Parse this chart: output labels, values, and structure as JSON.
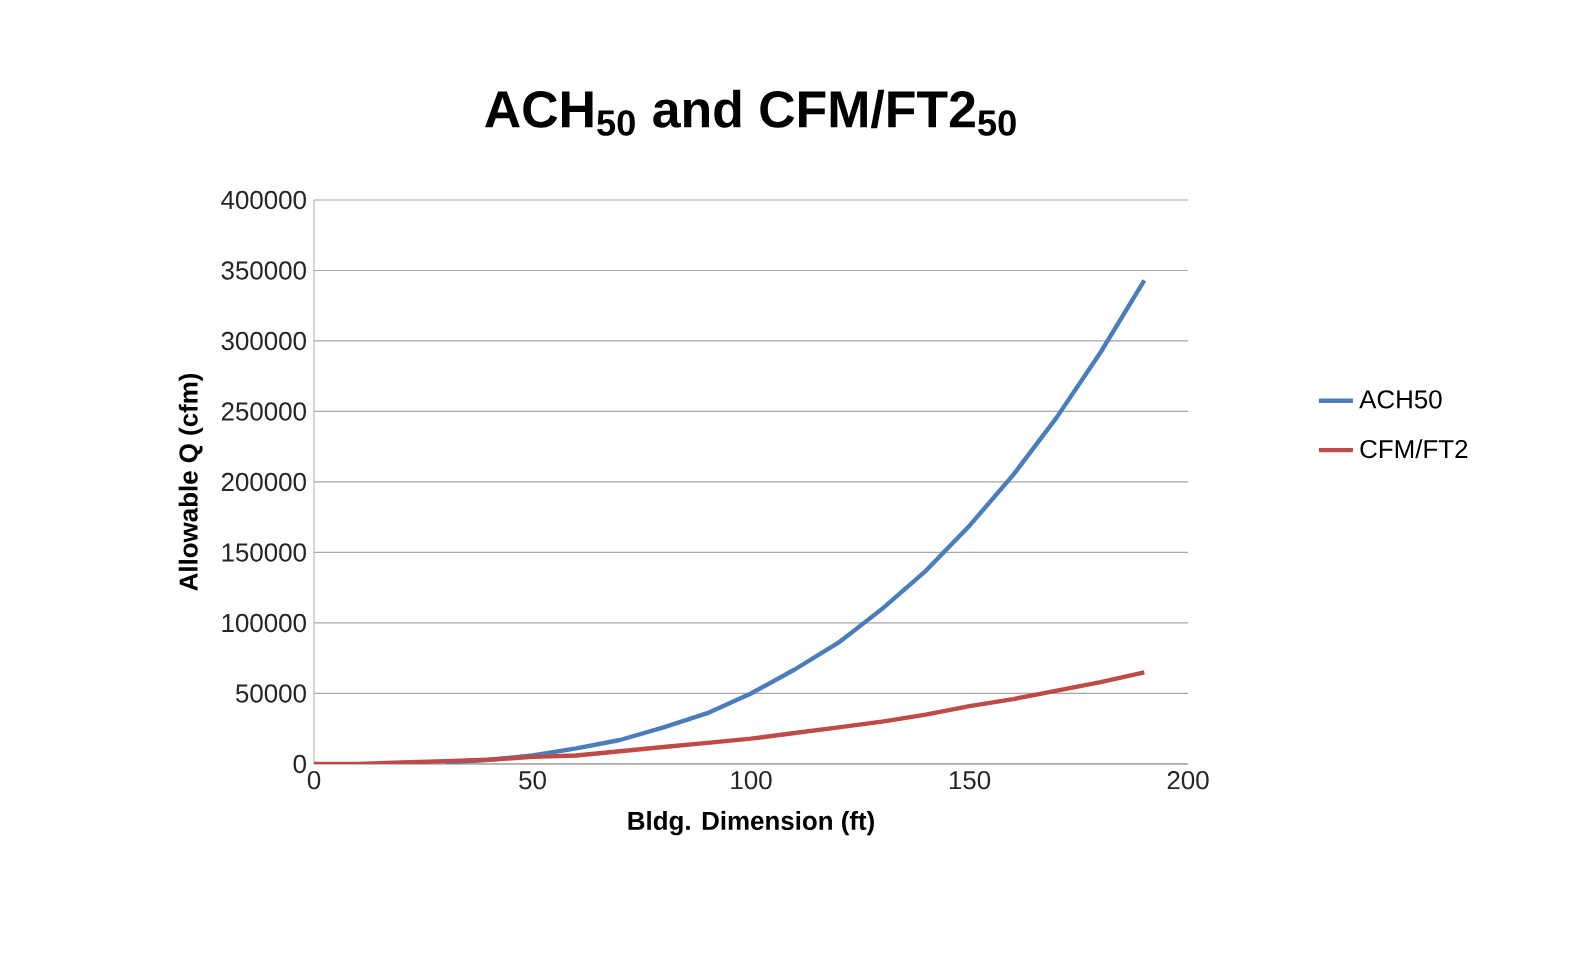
{
  "chart_data": {
    "type": "line",
    "title": "ACH$_{50}$ and CFM/FT2$_{50}$",
    "xlabel": "Bldg. Dimension (ft)",
    "ylabel": "Allowable Q (cfm)",
    "x": [
      0,
      10,
      20,
      30,
      40,
      50,
      60,
      70,
      80,
      90,
      100,
      110,
      120,
      130,
      140,
      150,
      160,
      170,
      180,
      190
    ],
    "series": [
      {
        "name": "ACH50",
        "color": "#4a7ebb",
        "values": [
          null,
          null,
          null,
          1000,
          3000,
          6000,
          11000,
          17000,
          26000,
          36000,
          50000,
          67000,
          86000,
          110000,
          137000,
          169000,
          205000,
          246000,
          292000,
          343000
        ]
      },
      {
        "name": "CFM/FT2",
        "color": "#be4b48",
        "values": [
          0,
          0,
          1000,
          2000,
          3000,
          5000,
          6000,
          9000,
          12000,
          15000,
          18000,
          22000,
          26000,
          30000,
          35000,
          41000,
          46000,
          52000,
          58000,
          65000
        ]
      }
    ],
    "xlim": [
      0,
      200
    ],
    "xticks": [
      0,
      50,
      100,
      150,
      200
    ],
    "ylim": [
      0,
      400000
    ],
    "yticks": [
      0,
      50000,
      100000,
      150000,
      200000,
      250000,
      300000,
      350000,
      400000
    ],
    "grid": "y",
    "legend": "right",
    "marker": "none",
    "line_style": "solid"
  }
}
